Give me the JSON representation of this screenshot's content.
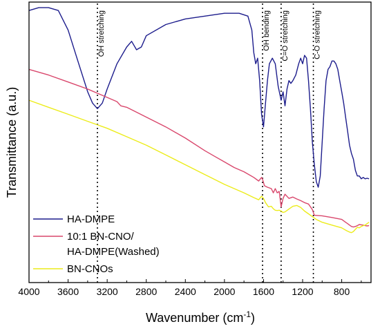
{
  "chart_data": {
    "type": "line",
    "xlabel": "Wavenumber (cm",
    "xlabel_sup": "-1",
    "xlabel_end": ")",
    "ylabel": "Transmittance (a.u.)",
    "xlim": [
      4000,
      500
    ],
    "x_reversed": true,
    "ylim": [
      0,
      1
    ],
    "x_ticks": [
      "4000",
      "3600",
      "3200",
      "2800",
      "2400",
      "2000",
      "1600",
      "1200",
      "800"
    ],
    "grid": false,
    "legend_position": "bottom-left",
    "annotations": [
      {
        "x": 3300,
        "text": "OH stretching"
      },
      {
        "x": 1610,
        "text": "OH bending"
      },
      {
        "x": 1420,
        "text": "C=O stretching"
      },
      {
        "x": 1090,
        "text": "C-O stretching"
      }
    ],
    "series": [
      {
        "name": "HA-DMPE",
        "color": "#1c1c8c",
        "points": [
          [
            4000,
            0.97
          ],
          [
            3900,
            0.98
          ],
          [
            3800,
            0.98
          ],
          [
            3700,
            0.97
          ],
          [
            3600,
            0.9
          ],
          [
            3500,
            0.79
          ],
          [
            3400,
            0.68
          ],
          [
            3350,
            0.64
          ],
          [
            3300,
            0.62
          ],
          [
            3250,
            0.64
          ],
          [
            3200,
            0.69
          ],
          [
            3100,
            0.78
          ],
          [
            3000,
            0.84
          ],
          [
            2950,
            0.86
          ],
          [
            2900,
            0.83
          ],
          [
            2850,
            0.84
          ],
          [
            2800,
            0.88
          ],
          [
            2600,
            0.92
          ],
          [
            2400,
            0.94
          ],
          [
            2200,
            0.95
          ],
          [
            2000,
            0.96
          ],
          [
            1850,
            0.96
          ],
          [
            1760,
            0.95
          ],
          [
            1720,
            0.9
          ],
          [
            1700,
            0.82
          ],
          [
            1680,
            0.78
          ],
          [
            1660,
            0.8
          ],
          [
            1640,
            0.72
          ],
          [
            1620,
            0.6
          ],
          [
            1600,
            0.555
          ],
          [
            1580,
            0.64
          ],
          [
            1560,
            0.72
          ],
          [
            1540,
            0.78
          ],
          [
            1510,
            0.8
          ],
          [
            1480,
            0.78
          ],
          [
            1450,
            0.7
          ],
          [
            1420,
            0.65
          ],
          [
            1400,
            0.68
          ],
          [
            1380,
            0.63
          ],
          [
            1360,
            0.69
          ],
          [
            1340,
            0.72
          ],
          [
            1320,
            0.71
          ],
          [
            1300,
            0.72
          ],
          [
            1270,
            0.74
          ],
          [
            1240,
            0.78
          ],
          [
            1220,
            0.8
          ],
          [
            1200,
            0.78
          ],
          [
            1180,
            0.81
          ],
          [
            1160,
            0.8
          ],
          [
            1140,
            0.72
          ],
          [
            1120,
            0.62
          ],
          [
            1100,
            0.5
          ],
          [
            1080,
            0.42
          ],
          [
            1060,
            0.36
          ],
          [
            1040,
            0.34
          ],
          [
            1020,
            0.38
          ],
          [
            1000,
            0.5
          ],
          [
            980,
            0.62
          ],
          [
            960,
            0.72
          ],
          [
            940,
            0.76
          ],
          [
            920,
            0.77
          ],
          [
            900,
            0.79
          ],
          [
            880,
            0.79
          ],
          [
            860,
            0.78
          ],
          [
            840,
            0.76
          ],
          [
            820,
            0.72
          ],
          [
            800,
            0.68
          ],
          [
            780,
            0.64
          ],
          [
            760,
            0.59
          ],
          [
            740,
            0.54
          ],
          [
            720,
            0.49
          ],
          [
            700,
            0.46
          ],
          [
            680,
            0.44
          ],
          [
            660,
            0.4
          ],
          [
            640,
            0.38
          ],
          [
            620,
            0.38
          ],
          [
            600,
            0.37
          ],
          [
            580,
            0.375
          ],
          [
            560,
            0.37
          ],
          [
            540,
            0.372
          ],
          [
            520,
            0.37
          ]
        ]
      },
      {
        "name": "10:1 BN-CNO/",
        "name_line2": "HA-DMPE(Washed)",
        "color": "#d9476c",
        "points": [
          [
            4000,
            0.76
          ],
          [
            3800,
            0.74
          ],
          [
            3600,
            0.715
          ],
          [
            3400,
            0.69
          ],
          [
            3200,
            0.66
          ],
          [
            3100,
            0.645
          ],
          [
            3060,
            0.63
          ],
          [
            3000,
            0.625
          ],
          [
            2800,
            0.59
          ],
          [
            2600,
            0.555
          ],
          [
            2400,
            0.515
          ],
          [
            2200,
            0.47
          ],
          [
            2100,
            0.45
          ],
          [
            2000,
            0.43
          ],
          [
            1900,
            0.41
          ],
          [
            1800,
            0.395
          ],
          [
            1700,
            0.375
          ],
          [
            1650,
            0.362
          ],
          [
            1620,
            0.375
          ],
          [
            1610,
            0.368
          ],
          [
            1590,
            0.345
          ],
          [
            1560,
            0.34
          ],
          [
            1520,
            0.335
          ],
          [
            1500,
            0.32
          ],
          [
            1480,
            0.335
          ],
          [
            1460,
            0.32
          ],
          [
            1440,
            0.325
          ],
          [
            1420,
            0.27
          ],
          [
            1400,
            0.3
          ],
          [
            1380,
            0.315
          ],
          [
            1340,
            0.3
          ],
          [
            1300,
            0.305
          ],
          [
            1260,
            0.298
          ],
          [
            1220,
            0.292
          ],
          [
            1180,
            0.285
          ],
          [
            1140,
            0.28
          ],
          [
            1100,
            0.26
          ],
          [
            1080,
            0.24
          ],
          [
            1000,
            0.238
          ],
          [
            900,
            0.232
          ],
          [
            800,
            0.225
          ],
          [
            760,
            0.215
          ],
          [
            740,
            0.21
          ],
          [
            720,
            0.205
          ],
          [
            700,
            0.2
          ],
          [
            680,
            0.198
          ],
          [
            660,
            0.2
          ],
          [
            640,
            0.203
          ],
          [
            620,
            0.207
          ],
          [
            600,
            0.206
          ],
          [
            580,
            0.205
          ],
          [
            560,
            0.203
          ],
          [
            540,
            0.202
          ],
          [
            520,
            0.203
          ]
        ]
      },
      {
        "name": "BN-CNOs",
        "color": "#ecec1a",
        "points": [
          [
            4000,
            0.65
          ],
          [
            3800,
            0.625
          ],
          [
            3600,
            0.6
          ],
          [
            3400,
            0.575
          ],
          [
            3200,
            0.55
          ],
          [
            3000,
            0.52
          ],
          [
            2800,
            0.49
          ],
          [
            2600,
            0.455
          ],
          [
            2400,
            0.42
          ],
          [
            2200,
            0.385
          ],
          [
            2000,
            0.35
          ],
          [
            1900,
            0.335
          ],
          [
            1800,
            0.32
          ],
          [
            1700,
            0.303
          ],
          [
            1650,
            0.295
          ],
          [
            1620,
            0.308
          ],
          [
            1600,
            0.3
          ],
          [
            1580,
            0.285
          ],
          [
            1550,
            0.27
          ],
          [
            1520,
            0.272
          ],
          [
            1500,
            0.263
          ],
          [
            1480,
            0.258
          ],
          [
            1460,
            0.257
          ],
          [
            1440,
            0.258
          ],
          [
            1420,
            0.255
          ],
          [
            1400,
            0.25
          ],
          [
            1380,
            0.252
          ],
          [
            1340,
            0.262
          ],
          [
            1300,
            0.272
          ],
          [
            1260,
            0.275
          ],
          [
            1220,
            0.268
          ],
          [
            1180,
            0.255
          ],
          [
            1140,
            0.245
          ],
          [
            1100,
            0.235
          ],
          [
            1060,
            0.225
          ],
          [
            1000,
            0.215
          ],
          [
            900,
            0.205
          ],
          [
            800,
            0.195
          ],
          [
            750,
            0.185
          ],
          [
            720,
            0.18
          ],
          [
            700,
            0.178
          ],
          [
            680,
            0.182
          ],
          [
            660,
            0.19
          ],
          [
            640,
            0.197
          ],
          [
            620,
            0.195
          ],
          [
            600,
            0.2
          ],
          [
            580,
            0.203
          ],
          [
            560,
            0.205
          ],
          [
            540,
            0.21
          ],
          [
            520,
            0.215
          ]
        ]
      }
    ]
  }
}
